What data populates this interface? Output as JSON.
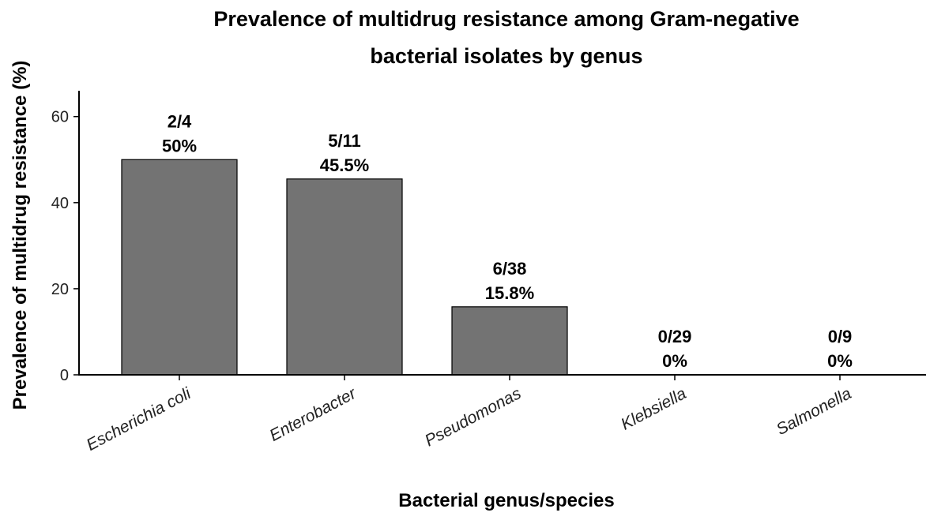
{
  "chart_data": {
    "type": "bar",
    "title_lines": [
      "Prevalence of multidrug resistance among Gram-negative",
      "bacterial isolates by genus"
    ],
    "xlabel": "Bacterial genus/species",
    "ylabel": "Prevalence of multidrug resistance (%)",
    "categories": [
      "Escherichia coli",
      "Enterobacter",
      "Pseudomonas",
      "Klebsiella",
      "Salmonella"
    ],
    "values": [
      50,
      45.5,
      15.8,
      0,
      0
    ],
    "counts": [
      "2/4",
      "5/11",
      "6/38",
      "0/29",
      "0/9"
    ],
    "percent_labels": [
      "50%",
      "45.5%",
      "15.8%",
      "0%",
      "0%"
    ],
    "ylim": [
      0,
      66
    ],
    "yticks": [
      0,
      20,
      40,
      60
    ],
    "bar_color": "#737373",
    "grid": false,
    "legend": "none"
  }
}
